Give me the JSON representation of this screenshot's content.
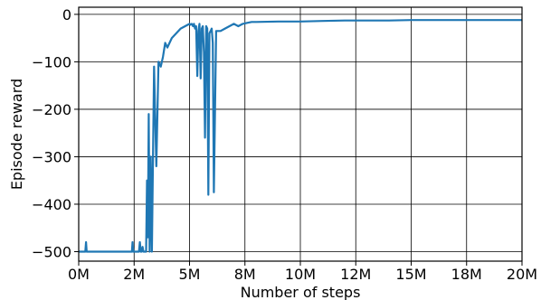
{
  "chart_data": {
    "type": "line",
    "title": "",
    "xlabel": "Number of steps",
    "ylabel": "Episode reward",
    "xlim": [
      0,
      20000000
    ],
    "ylim": [
      -520,
      15
    ],
    "grid": true,
    "line_color": "#1f77b4",
    "x_ticks": [
      {
        "value": 0,
        "label": "0M"
      },
      {
        "value": 2500000,
        "label": "2M"
      },
      {
        "value": 5000000,
        "label": "5M"
      },
      {
        "value": 7500000,
        "label": "8M"
      },
      {
        "value": 10000000,
        "label": "10M"
      },
      {
        "value": 12500000,
        "label": "12M"
      },
      {
        "value": 15000000,
        "label": "15M"
      },
      {
        "value": 17500000,
        "label": "18M"
      },
      {
        "value": 20000000,
        "label": "20M"
      }
    ],
    "y_ticks": [
      {
        "value": 0,
        "label": "0"
      },
      {
        "value": -100,
        "label": "−100"
      },
      {
        "value": -200,
        "label": "−200"
      },
      {
        "value": -300,
        "label": "−300"
      },
      {
        "value": -400,
        "label": "−400"
      },
      {
        "value": -500,
        "label": "−500"
      }
    ],
    "series": [
      {
        "name": "",
        "x": [
          0,
          300000,
          330000,
          360000,
          1000000,
          2000000,
          2400000,
          2430000,
          2460000,
          2490000,
          2520000,
          2560000,
          2600000,
          2640000,
          2680000,
          2720000,
          2760000,
          2800000,
          2840000,
          2880000,
          2920000,
          2960000,
          3000000,
          3040000,
          3080000,
          3120000,
          3160000,
          3200000,
          3250000,
          3300000,
          3400000,
          3500000,
          3600000,
          3700000,
          3800000,
          3900000,
          4000000,
          4200000,
          4400000,
          4600000,
          4800000,
          5000000,
          5050000,
          5100000,
          5130000,
          5160000,
          5200000,
          5250000,
          5300000,
          5350000,
          5400000,
          5450000,
          5500000,
          5550000,
          5600000,
          5650000,
          5700000,
          5750000,
          5800000,
          5850000,
          5900000,
          5950000,
          6000000,
          6050000,
          6100000,
          6200000,
          6400000,
          6600000,
          6800000,
          7000000,
          7200000,
          7400000,
          7600000,
          7800000,
          8000000,
          9000000,
          10000000,
          11000000,
          12000000,
          13000000,
          14000000,
          15000000,
          16000000,
          17000000,
          18000000,
          19000000,
          20000000
        ],
        "y": [
          -500,
          -500,
          -480,
          -500,
          -500,
          -500,
          -500,
          -480,
          -500,
          -500,
          -500,
          -500,
          -500,
          -500,
          -500,
          -500,
          -480,
          -500,
          -500,
          -490,
          -500,
          -500,
          -500,
          -500,
          -350,
          -470,
          -210,
          -500,
          -300,
          -500,
          -110,
          -320,
          -100,
          -110,
          -90,
          -60,
          -70,
          -50,
          -40,
          -30,
          -25,
          -20,
          -22,
          -20,
          -22,
          -25,
          -20,
          -30,
          -25,
          -130,
          -35,
          -20,
          -135,
          -30,
          -25,
          -80,
          -260,
          -25,
          -30,
          -380,
          -40,
          -35,
          -30,
          -60,
          -375,
          -35,
          -35,
          -30,
          -25,
          -20,
          -25,
          -20,
          -18,
          -16,
          -16,
          -15,
          -15,
          -14,
          -13,
          -13,
          -13,
          -12,
          -12,
          -12,
          -12,
          -12,
          -12
        ]
      }
    ]
  }
}
